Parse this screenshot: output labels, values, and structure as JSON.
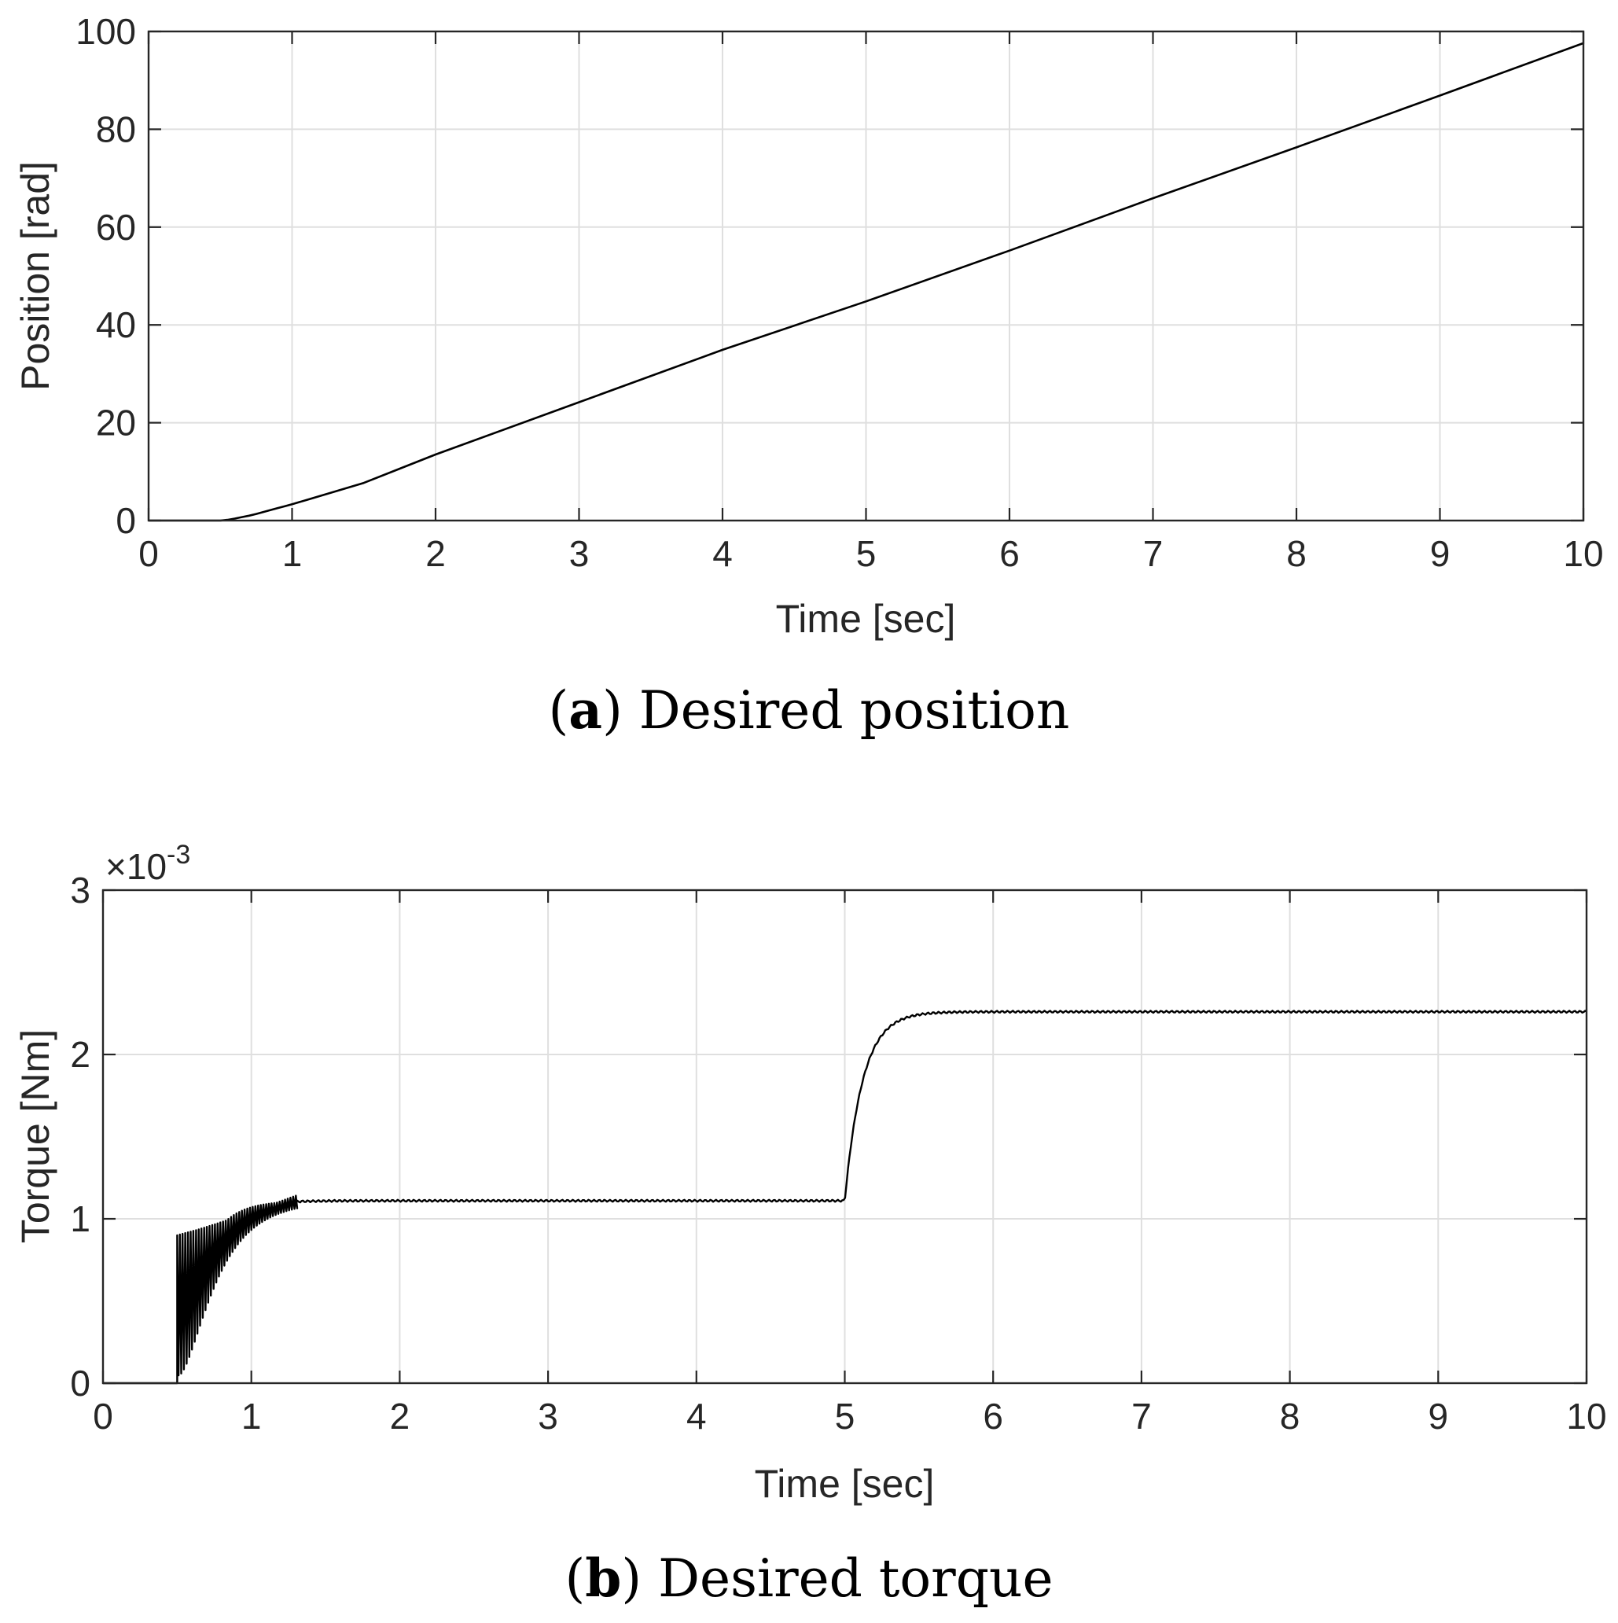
{
  "chart_data": [
    {
      "type": "line",
      "title": "",
      "caption": {
        "label": "a",
        "text": "Desired position"
      },
      "xlabel": "Time [sec]",
      "ylabel": "Position [rad]",
      "xlim": [
        0,
        10
      ],
      "ylim": [
        0,
        100
      ],
      "xticks": [
        "0",
        "1",
        "2",
        "3",
        "4",
        "5",
        "6",
        "7",
        "8",
        "9",
        "10"
      ],
      "yticks": [
        "0",
        "20",
        "40",
        "60",
        "80",
        "100"
      ],
      "grid": true,
      "series": [
        {
          "name": "Desired position",
          "color": "#000000",
          "x": [
            0,
            0.5,
            0.55,
            0.6,
            0.65,
            0.7,
            0.75,
            0.8,
            0.85,
            0.9,
            0.95,
            1.0,
            1.1,
            1.25,
            1.5,
            2,
            3,
            4,
            5,
            6,
            7,
            8,
            9,
            10
          ],
          "y": [
            0,
            0,
            0.15,
            0.4,
            0.7,
            1.0,
            1.35,
            1.75,
            2.15,
            2.55,
            2.95,
            3.35,
            4.2,
            5.5,
            7.7,
            13.5,
            24.2,
            34.9,
            44.8,
            55.2,
            65.9,
            76.3,
            86.9,
            97.6
          ]
        }
      ]
    },
    {
      "type": "line",
      "title": "",
      "caption": {
        "label": "b",
        "text": "Desired torque"
      },
      "xlabel": "Time [sec]",
      "ylabel": "Torque [Nm]",
      "xlim": [
        0,
        10
      ],
      "ylim": [
        0,
        3
      ],
      "xticks": [
        "0",
        "1",
        "2",
        "3",
        "4",
        "5",
        "6",
        "7",
        "8",
        "9",
        "10"
      ],
      "yticks": [
        "0",
        "1",
        "2",
        "3"
      ],
      "y_exponent": {
        "base": "10",
        "power": "-3"
      },
      "grid": true,
      "series": [
        {
          "name": "Desired torque",
          "color": "#000000",
          "steady_segments": [
            {
              "t_start": 0,
              "t_end": 0.5,
              "level": 0
            },
            {
              "t_start": 0.5,
              "t_end": 5.0,
              "level": 1.11,
              "rise_tau": 0.15
            },
            {
              "t_start": 5.0,
              "t_end": 10.0,
              "level": 2.26,
              "rise_tau": 0.12
            }
          ],
          "ripple": {
            "t_start": 0.5,
            "t_end": 1.3,
            "peak": 0.9
          }
        }
      ]
    }
  ]
}
